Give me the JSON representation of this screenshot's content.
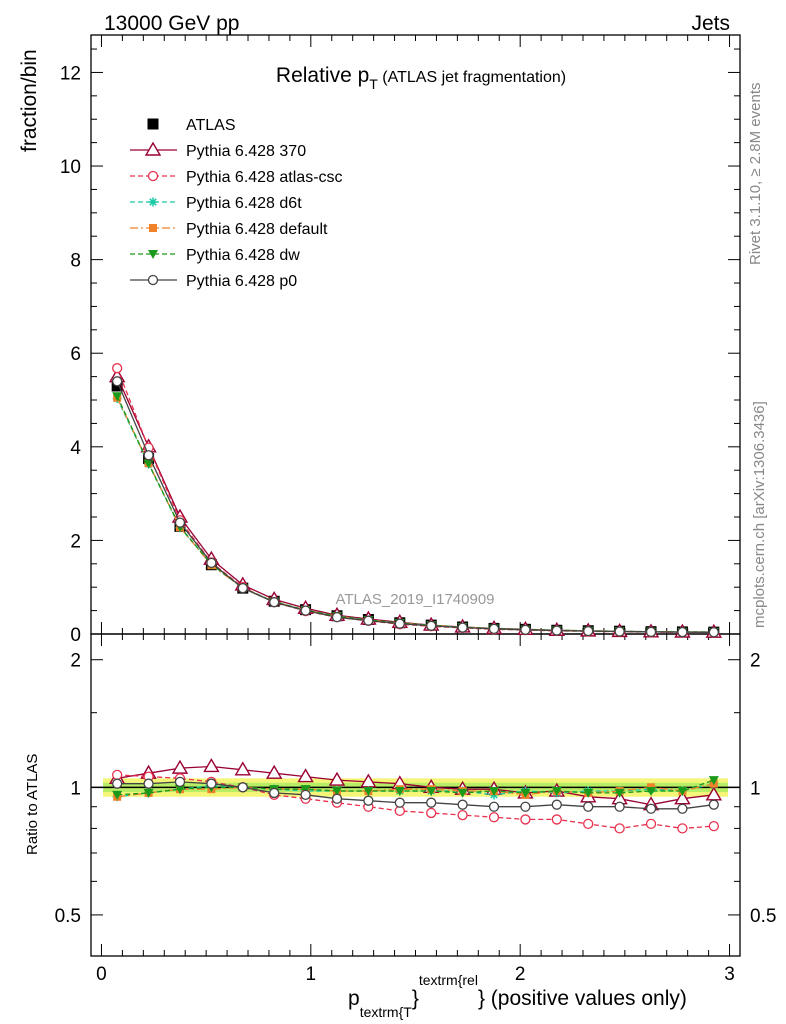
{
  "header": {
    "left": "13000 GeV pp",
    "right": "Jets"
  },
  "side_labels": {
    "rivet": "Rivet 3.1.10, ≥ 2.8M events",
    "mcplots": "mcplots.cern.ch [arXiv:1306.3436]"
  },
  "title": {
    "main": "Relative p",
    "sub": "T",
    "suffix": " (ATLAS jet fragmentation)"
  },
  "watermark": "ATLAS_2019_I1740909",
  "ylabel_top": "fraction/bin",
  "ylabel_bottom": "Ratio to ATLAS",
  "xlabel": {
    "p": "p",
    "sub": "textrm{T",
    "brace1": "}",
    "sup": "textrm{rel",
    "brace2": "}",
    "rest": " (positive values only)"
  },
  "chart_data": [
    {
      "type": "line",
      "panel": "main",
      "x": [
        0.075,
        0.225,
        0.375,
        0.525,
        0.675,
        0.825,
        0.975,
        1.125,
        1.275,
        1.425,
        1.575,
        1.725,
        1.875,
        2.025,
        2.175,
        2.325,
        2.475,
        2.625,
        2.775,
        2.925
      ],
      "xlim": [
        -0.05,
        3.05
      ],
      "ylim": [
        0,
        12.8
      ],
      "yticks": [
        0,
        2,
        4,
        6,
        8,
        10,
        12
      ],
      "ytick_labels": [
        "0",
        "2",
        "4",
        "6",
        "8",
        "10",
        "12"
      ],
      "series": [
        {
          "name": "ATLAS",
          "color": "#000000",
          "marker": "square",
          "dash": "none",
          "values": [
            5.3,
            3.75,
            2.3,
            1.48,
            0.98,
            0.7,
            0.52,
            0.39,
            0.31,
            0.24,
            0.19,
            0.15,
            0.12,
            0.1,
            0.08,
            0.07,
            0.06,
            0.05,
            0.045,
            0.04
          ]
        },
        {
          "name": "Pythia 6.428 370",
          "color": "#990033",
          "marker": "triangle-open",
          "dash": "none",
          "values": [
            5.5,
            4.0,
            2.5,
            1.6,
            1.05,
            0.74,
            0.55,
            0.4,
            0.32,
            0.25,
            0.19,
            0.15,
            0.12,
            0.1,
            0.08,
            0.067,
            0.056,
            0.046,
            0.043,
            0.039
          ]
        },
        {
          "name": "Pythia 6.428 atlas-csc",
          "color": "#e8314e",
          "marker": "circle-open",
          "dash": "5,3",
          "values": [
            5.68,
            3.98,
            2.43,
            1.53,
            1.0,
            0.68,
            0.49,
            0.36,
            0.28,
            0.21,
            0.165,
            0.13,
            0.1,
            0.084,
            0.067,
            0.057,
            0.048,
            0.041,
            0.036,
            0.033
          ]
        },
        {
          "name": "Pythia 6.428 d6t",
          "color": "#18c9a6",
          "marker": "star",
          "dash": "5,3",
          "values": [
            5.03,
            3.63,
            2.27,
            1.5,
            0.98,
            0.69,
            0.51,
            0.38,
            0.3,
            0.234,
            0.185,
            0.146,
            0.115,
            0.098,
            0.078,
            0.068,
            0.058,
            0.049,
            0.044,
            0.041
          ]
        },
        {
          "name": "Pythia 6.428 default",
          "color": "#f0822a",
          "marker": "square-filled",
          "dash": "8,3,2,3",
          "values": [
            5.05,
            3.65,
            2.28,
            1.47,
            0.98,
            0.69,
            0.51,
            0.38,
            0.3,
            0.236,
            0.187,
            0.147,
            0.118,
            0.096,
            0.078,
            0.068,
            0.058,
            0.05,
            0.044,
            0.041
          ]
        },
        {
          "name": "Pythia 6.428 dw",
          "color": "#1a9a1a",
          "marker": "triangle-down",
          "dash": "5,3",
          "values": [
            5.08,
            3.64,
            2.29,
            1.49,
            0.98,
            0.69,
            0.51,
            0.38,
            0.3,
            0.235,
            0.186,
            0.146,
            0.117,
            0.097,
            0.078,
            0.068,
            0.058,
            0.049,
            0.044,
            0.042
          ]
        },
        {
          "name": "Pythia 6.428 p0",
          "color": "#444444",
          "marker": "circle-open",
          "dash": "none",
          "values": [
            5.4,
            3.82,
            2.38,
            1.52,
            0.98,
            0.68,
            0.5,
            0.36,
            0.285,
            0.22,
            0.175,
            0.137,
            0.11,
            0.09,
            0.073,
            0.063,
            0.054,
            0.045,
            0.041,
            0.037
          ]
        }
      ]
    },
    {
      "type": "line",
      "panel": "ratio",
      "x": [
        0.075,
        0.225,
        0.375,
        0.525,
        0.675,
        0.825,
        0.975,
        1.125,
        1.275,
        1.425,
        1.575,
        1.725,
        1.875,
        2.025,
        2.175,
        2.325,
        2.475,
        2.625,
        2.775,
        2.925
      ],
      "xlim": [
        -0.05,
        3.05
      ],
      "ylim": [
        0.4,
        2.3
      ],
      "yscale": "log",
      "yticks": [
        0.5,
        1,
        2
      ],
      "ytick_labels": [
        "0.5",
        "1",
        "2"
      ],
      "xticks": [
        0,
        1,
        2,
        3
      ],
      "xtick_labels": [
        "0",
        "1",
        "2",
        "3"
      ],
      "band": {
        "outer": 0.05,
        "inner": 0.025
      },
      "series": [
        {
          "name": "Pythia 6.428 370",
          "color": "#990033",
          "marker": "triangle-open",
          "dash": "none",
          "values": [
            1.05,
            1.08,
            1.11,
            1.12,
            1.1,
            1.08,
            1.06,
            1.04,
            1.03,
            1.02,
            1.0,
            0.99,
            0.99,
            0.97,
            0.98,
            0.95,
            0.94,
            0.91,
            0.94,
            0.96
          ]
        },
        {
          "name": "Pythia 6.428 atlas-csc",
          "color": "#e8314e",
          "marker": "circle-open",
          "dash": "5,3",
          "values": [
            1.07,
            1.06,
            1.05,
            1.03,
            1.0,
            0.96,
            0.94,
            0.92,
            0.9,
            0.88,
            0.87,
            0.86,
            0.85,
            0.84,
            0.84,
            0.82,
            0.8,
            0.82,
            0.8,
            0.81
          ]
        },
        {
          "name": "Pythia 6.428 d6t",
          "color": "#18c9a6",
          "marker": "star",
          "dash": "5,3",
          "values": [
            0.95,
            0.97,
            0.99,
            1.01,
            1.0,
            0.99,
            0.98,
            0.98,
            0.98,
            0.98,
            0.98,
            0.98,
            0.96,
            0.98,
            0.97,
            0.98,
            0.98,
            0.99,
            0.98,
            1.02
          ]
        },
        {
          "name": "Pythia 6.428 default",
          "color": "#f0822a",
          "marker": "square-filled",
          "dash": "8,3,2,3",
          "values": [
            0.95,
            0.97,
            0.99,
            0.99,
            1.0,
            0.99,
            0.99,
            0.98,
            0.98,
            0.99,
            0.99,
            0.98,
            0.98,
            0.96,
            0.98,
            0.97,
            0.98,
            1.0,
            0.98,
            1.02
          ]
        },
        {
          "name": "Pythia 6.428 dw",
          "color": "#1a9a1a",
          "marker": "triangle-down",
          "dash": "5,3",
          "values": [
            0.96,
            0.97,
            0.99,
            1.0,
            1.0,
            0.99,
            0.99,
            0.98,
            0.98,
            0.98,
            0.98,
            0.97,
            0.98,
            0.97,
            0.98,
            0.97,
            0.97,
            0.98,
            0.98,
            1.04
          ]
        },
        {
          "name": "Pythia 6.428 p0",
          "color": "#444444",
          "marker": "circle-open",
          "dash": "none",
          "values": [
            1.02,
            1.02,
            1.03,
            1.02,
            1.0,
            0.97,
            0.96,
            0.94,
            0.93,
            0.92,
            0.92,
            0.91,
            0.9,
            0.9,
            0.91,
            0.9,
            0.9,
            0.89,
            0.89,
            0.91
          ]
        }
      ]
    }
  ]
}
